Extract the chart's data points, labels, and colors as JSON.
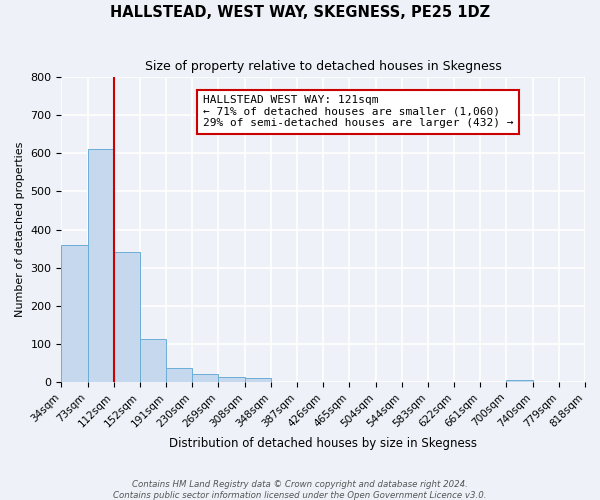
{
  "title": "HALLSTEAD, WEST WAY, SKEGNESS, PE25 1DZ",
  "subtitle": "Size of property relative to detached houses in Skegness",
  "xlabel": "Distribution of detached houses by size in Skegness",
  "ylabel": "Number of detached properties",
  "bar_values": [
    360,
    610,
    340,
    113,
    38,
    22,
    14,
    10,
    0,
    0,
    0,
    0,
    0,
    0,
    0,
    0,
    0,
    5,
    0,
    0
  ],
  "bin_labels": [
    "34sqm",
    "73sqm",
    "112sqm",
    "152sqm",
    "191sqm",
    "230sqm",
    "269sqm",
    "308sqm",
    "348sqm",
    "387sqm",
    "426sqm",
    "465sqm",
    "504sqm",
    "544sqm",
    "583sqm",
    "622sqm",
    "661sqm",
    "700sqm",
    "740sqm",
    "779sqm",
    "818sqm"
  ],
  "ylim": [
    0,
    800
  ],
  "yticks": [
    0,
    100,
    200,
    300,
    400,
    500,
    600,
    700,
    800
  ],
  "bar_color": "#c5d8ed",
  "bar_edge_color": "#6aaed6",
  "red_line_x": 2,
  "annotation_title": "HALLSTEAD WEST WAY: 121sqm",
  "annotation_line1": "← 71% of detached houses are smaller (1,060)",
  "annotation_line2": "29% of semi-detached houses are larger (432) →",
  "annotation_box_color": "#ffffff",
  "annotation_box_edge": "#cc0000",
  "red_line_color": "#cc0000",
  "footer1": "Contains HM Land Registry data © Crown copyright and database right 2024.",
  "footer2": "Contains public sector information licensed under the Open Government Licence v3.0.",
  "background_color": "#eef2f8",
  "grid_color": "#ffffff"
}
